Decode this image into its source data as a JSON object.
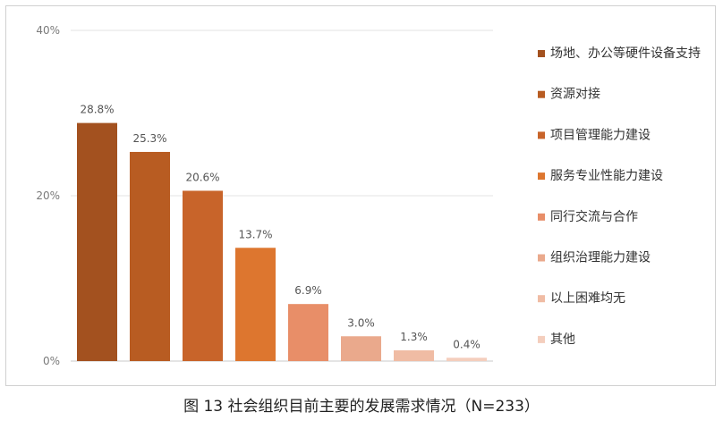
{
  "caption": "图 13 社会组织目前主要的发展需求情况（N=233）",
  "chart_data": {
    "type": "bar",
    "categories": [
      "场地、办公等硬件设备支持",
      "资源对接",
      "项目管理能力建设",
      "服务专业性能力建设",
      "同行交流与合作",
      "组织治理能力建设",
      "以上困难均无",
      "其他"
    ],
    "values": [
      28.8,
      25.3,
      20.6,
      13.7,
      6.9,
      3.0,
      1.3,
      0.4
    ],
    "value_labels": [
      "28.8%",
      "25.3%",
      "20.6%",
      "13.7%",
      "6.9%",
      "3.0%",
      "1.3%",
      "0.4%"
    ],
    "colors": [
      "#a3511f",
      "#b85c22",
      "#c8642a",
      "#dd762f",
      "#e88e68",
      "#eaa98c",
      "#f0bca4",
      "#f4cebd"
    ],
    "y_ticks": [
      0,
      20,
      40
    ],
    "y_tick_labels": [
      "0%",
      "20%",
      "40%"
    ],
    "ylim": [
      0,
      40
    ],
    "grid": true,
    "legend_position": "right",
    "title": "",
    "xlabel": "",
    "ylabel": ""
  }
}
